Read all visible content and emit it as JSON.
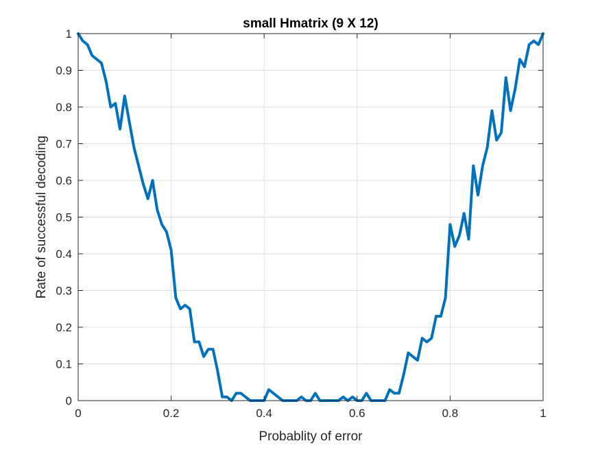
{
  "chart_data": {
    "type": "line",
    "title": "small Hmatrix (9 X 12)",
    "xlabel": "Probablity of error",
    "ylabel": "Rate of successful decoding",
    "xlim": [
      0,
      1
    ],
    "ylim": [
      0,
      1
    ],
    "grid": true,
    "xticks": [
      0,
      0.2,
      0.4,
      0.6,
      0.8,
      1
    ],
    "xtick_labels": [
      "0",
      "0.2",
      "0.4",
      "0.6",
      "0.8",
      "1"
    ],
    "yticks": [
      0,
      0.1,
      0.2,
      0.3,
      0.4,
      0.5,
      0.6,
      0.7,
      0.8,
      0.9,
      1
    ],
    "ytick_labels": [
      "0",
      "0.1",
      "0.2",
      "0.3",
      "0.4",
      "0.5",
      "0.6",
      "0.7",
      "0.8",
      "0.9",
      "1"
    ],
    "color": "#0072BD",
    "series": [
      {
        "x": [
          0,
          0.01,
          0.02,
          0.03,
          0.04,
          0.05,
          0.06,
          0.07,
          0.08,
          0.09,
          0.1,
          0.11,
          0.12,
          0.13,
          0.14,
          0.15,
          0.16,
          0.17,
          0.18,
          0.19,
          0.2,
          0.21,
          0.22,
          0.23,
          0.24,
          0.25,
          0.26,
          0.27,
          0.28,
          0.29,
          0.3,
          0.31,
          0.32,
          0.33,
          0.34,
          0.35,
          0.36,
          0.37,
          0.38,
          0.39,
          0.4,
          0.41,
          0.42,
          0.43,
          0.44,
          0.45,
          0.46,
          0.47,
          0.48,
          0.49,
          0.5,
          0.51,
          0.52,
          0.53,
          0.54,
          0.55,
          0.56,
          0.57,
          0.58,
          0.59,
          0.6,
          0.61,
          0.62,
          0.63,
          0.64,
          0.65,
          0.66,
          0.67,
          0.68,
          0.69,
          0.7,
          0.71,
          0.72,
          0.73,
          0.74,
          0.75,
          0.76,
          0.77,
          0.78,
          0.79,
          0.8,
          0.81,
          0.82,
          0.83,
          0.84,
          0.85,
          0.86,
          0.87,
          0.88,
          0.89,
          0.9,
          0.91,
          0.92,
          0.93,
          0.94,
          0.95,
          0.96,
          0.97,
          0.98,
          0.99,
          1
        ],
        "y": [
          1,
          0.98,
          0.97,
          0.94,
          0.93,
          0.92,
          0.87,
          0.8,
          0.81,
          0.74,
          0.83,
          0.76,
          0.69,
          0.64,
          0.59,
          0.55,
          0.6,
          0.52,
          0.48,
          0.46,
          0.41,
          0.28,
          0.25,
          0.26,
          0.25,
          0.16,
          0.16,
          0.12,
          0.14,
          0.14,
          0.08,
          0.01,
          0.01,
          0,
          0.02,
          0.02,
          0.01,
          0,
          0,
          0,
          0,
          0.03,
          0.02,
          0.01,
          0,
          0,
          0,
          0,
          0.01,
          0,
          0,
          0.02,
          0,
          0,
          0,
          0,
          0,
          0.01,
          0,
          0.01,
          0,
          0,
          0.02,
          0,
          0,
          0,
          0,
          0.03,
          0.02,
          0.02,
          0.07,
          0.13,
          0.12,
          0.11,
          0.17,
          0.16,
          0.17,
          0.23,
          0.23,
          0.28,
          0.48,
          0.42,
          0.45,
          0.51,
          0.44,
          0.64,
          0.56,
          0.64,
          0.69,
          0.79,
          0.71,
          0.73,
          0.88,
          0.79,
          0.85,
          0.93,
          0.91,
          0.97,
          0.98,
          0.97,
          1
        ]
      }
    ]
  }
}
